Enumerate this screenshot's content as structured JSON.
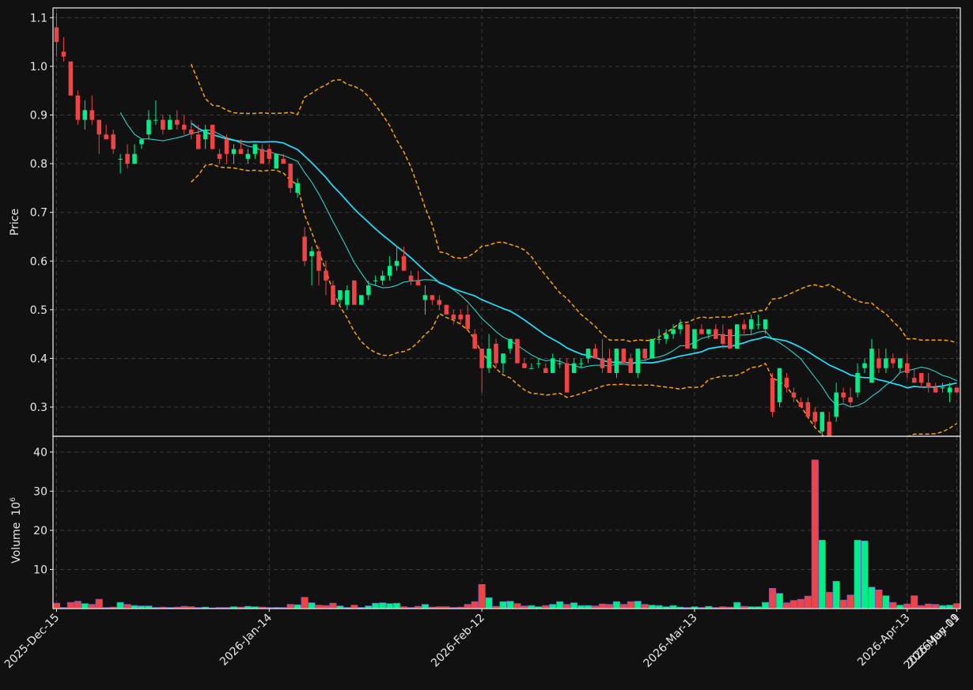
{
  "theme": {
    "background": "#111111",
    "frame": "#f0f0f0",
    "grid": "#3a3a3a",
    "text": "#e8e8e8",
    "up_color": "#00ee88",
    "down_color": "#ee4444",
    "ma_short_color": "#33e0d8",
    "ma_long_color": "#22e0ff",
    "band_color": "#ffa500"
  },
  "price_panel": {
    "ylabel": "Price",
    "yticks": [
      "1.1",
      "1.0",
      "0.9",
      "0.8",
      "0.7",
      "0.6",
      "0.5",
      "0.4",
      "0.3"
    ]
  },
  "volume_panel": {
    "ylabel": "Volume",
    "ylabel_exp": "10",
    "ylabel_sup": "6",
    "yticks": [
      "40",
      "30",
      "20",
      "10"
    ]
  },
  "x_axis": {
    "ticks": [
      "2025-Dec-15",
      "2026-Jan-14",
      "2026-Feb-12",
      "2026-Mar-13",
      "2026-Apr-13",
      "2026-May-11",
      "2026-Jun-09"
    ]
  },
  "chart_data": {
    "type": "candlestick",
    "price_ylim": [
      0.24,
      1.12
    ],
    "volume_ylim": [
      0,
      42
    ],
    "volume_unit": "10^6",
    "grid": true,
    "candles_ohlcv": [
      [
        1.08,
        1.11,
        1.02,
        1.05,
        1.4
      ],
      [
        1.03,
        1.06,
        1.01,
        1.02,
        0.3
      ],
      [
        1.01,
        1.01,
        0.94,
        0.94,
        1.6
      ],
      [
        0.94,
        0.95,
        0.88,
        0.89,
        1.9
      ],
      [
        0.89,
        0.93,
        0.87,
        0.91,
        1.3
      ],
      [
        0.91,
        0.94,
        0.88,
        0.89,
        1.1
      ],
      [
        0.89,
        0.89,
        0.82,
        0.86,
        2.4
      ],
      [
        0.86,
        0.88,
        0.85,
        0.85,
        0.3
      ],
      [
        0.86,
        0.87,
        0.82,
        0.83,
        0.4
      ],
      [
        0.81,
        0.82,
        0.78,
        0.81,
        1.6
      ],
      [
        0.82,
        0.84,
        0.79,
        0.8,
        1.1
      ],
      [
        0.8,
        0.84,
        0.8,
        0.82,
        0.8
      ],
      [
        0.84,
        0.85,
        0.83,
        0.85,
        0.7
      ],
      [
        0.86,
        0.91,
        0.85,
        0.89,
        0.7
      ],
      [
        0.89,
        0.93,
        0.88,
        0.89,
        0.3
      ],
      [
        0.89,
        0.9,
        0.86,
        0.87,
        0.4
      ],
      [
        0.87,
        0.9,
        0.87,
        0.89,
        0.3
      ],
      [
        0.89,
        0.91,
        0.87,
        0.88,
        0.4
      ],
      [
        0.88,
        0.9,
        0.86,
        0.87,
        0.6
      ],
      [
        0.87,
        0.89,
        0.85,
        0.86,
        0.5
      ],
      [
        0.86,
        0.88,
        0.83,
        0.83,
        0.3
      ],
      [
        0.85,
        0.88,
        0.83,
        0.87,
        0.4
      ],
      [
        0.88,
        0.88,
        0.83,
        0.83,
        0.2
      ],
      [
        0.82,
        0.83,
        0.8,
        0.81,
        0.3
      ],
      [
        0.85,
        0.86,
        0.8,
        0.82,
        0.3
      ],
      [
        0.82,
        0.84,
        0.8,
        0.83,
        0.5
      ],
      [
        0.83,
        0.85,
        0.82,
        0.82,
        0.4
      ],
      [
        0.81,
        0.83,
        0.8,
        0.82,
        0.6
      ],
      [
        0.82,
        0.84,
        0.81,
        0.84,
        0.5
      ],
      [
        0.83,
        0.84,
        0.8,
        0.8,
        0.4
      ],
      [
        0.83,
        0.84,
        0.8,
        0.81,
        0.3
      ],
      [
        0.79,
        0.82,
        0.79,
        0.82,
        0.3
      ],
      [
        0.81,
        0.82,
        0.8,
        0.8,
        0.3
      ],
      [
        0.8,
        0.8,
        0.74,
        0.75,
        1.1
      ],
      [
        0.74,
        0.77,
        0.73,
        0.76,
        1.0
      ],
      [
        0.65,
        0.67,
        0.59,
        0.6,
        2.9
      ],
      [
        0.61,
        0.63,
        0.55,
        0.62,
        1.5
      ],
      [
        0.62,
        0.63,
        0.55,
        0.58,
        0.9
      ],
      [
        0.58,
        0.6,
        0.53,
        0.56,
        0.8
      ],
      [
        0.55,
        0.56,
        0.51,
        0.51,
        1.4
      ],
      [
        0.52,
        0.54,
        0.51,
        0.54,
        0.7
      ],
      [
        0.51,
        0.55,
        0.5,
        0.54,
        0.3
      ],
      [
        0.56,
        0.56,
        0.51,
        0.51,
        0.9
      ],
      [
        0.51,
        0.53,
        0.51,
        0.53,
        0.3
      ],
      [
        0.53,
        0.56,
        0.52,
        0.55,
        0.7
      ],
      [
        0.56,
        0.57,
        0.55,
        0.56,
        1.4
      ],
      [
        0.56,
        0.58,
        0.55,
        0.57,
        1.5
      ],
      [
        0.57,
        0.61,
        0.56,
        0.59,
        1.3
      ],
      [
        0.59,
        0.63,
        0.58,
        0.6,
        1.4
      ],
      [
        0.61,
        0.63,
        0.58,
        0.58,
        0.5
      ],
      [
        0.57,
        0.58,
        0.55,
        0.56,
        0.3
      ],
      [
        0.56,
        0.58,
        0.55,
        0.55,
        0.6
      ],
      [
        0.52,
        0.55,
        0.49,
        0.53,
        1.1
      ],
      [
        0.53,
        0.53,
        0.51,
        0.52,
        0.4
      ],
      [
        0.52,
        0.53,
        0.5,
        0.51,
        0.5
      ],
      [
        0.51,
        0.51,
        0.49,
        0.49,
        0.5
      ],
      [
        0.49,
        0.5,
        0.47,
        0.48,
        0.3
      ],
      [
        0.49,
        0.5,
        0.47,
        0.48,
        0.4
      ],
      [
        0.49,
        0.51,
        0.46,
        0.46,
        1.1
      ],
      [
        0.45,
        0.46,
        0.42,
        0.42,
        1.8
      ],
      [
        0.42,
        0.42,
        0.33,
        0.38,
        6.2
      ],
      [
        0.38,
        0.45,
        0.37,
        0.42,
        2.8
      ],
      [
        0.43,
        0.44,
        0.38,
        0.39,
        0.6
      ],
      [
        0.39,
        0.41,
        0.37,
        0.41,
        1.8
      ],
      [
        0.42,
        0.44,
        0.41,
        0.44,
        1.9
      ],
      [
        0.44,
        0.44,
        0.39,
        0.39,
        1.3
      ],
      [
        0.39,
        0.4,
        0.38,
        0.38,
        0.7
      ],
      [
        0.38,
        0.39,
        0.38,
        0.38,
        0.8
      ],
      [
        0.39,
        0.4,
        0.38,
        0.39,
        0.5
      ],
      [
        0.38,
        0.39,
        0.37,
        0.37,
        0.8
      ],
      [
        0.37,
        0.41,
        0.37,
        0.4,
        1.1
      ],
      [
        0.39,
        0.4,
        0.38,
        0.39,
        1.8
      ],
      [
        0.39,
        0.4,
        0.33,
        0.33,
        1.1
      ],
      [
        0.37,
        0.4,
        0.37,
        0.39,
        1.5
      ],
      [
        0.39,
        0.4,
        0.38,
        0.39,
        0.8
      ],
      [
        0.4,
        0.42,
        0.39,
        0.42,
        0.8
      ],
      [
        0.42,
        0.43,
        0.4,
        0.4,
        0.7
      ],
      [
        0.4,
        0.44,
        0.37,
        0.38,
        1.2
      ],
      [
        0.4,
        0.42,
        0.37,
        0.37,
        1.1
      ],
      [
        0.37,
        0.42,
        0.36,
        0.42,
        1.8
      ],
      [
        0.42,
        0.42,
        0.39,
        0.39,
        1.1
      ],
      [
        0.4,
        0.41,
        0.37,
        0.37,
        1.8
      ],
      [
        0.37,
        0.41,
        0.36,
        0.42,
        1.9
      ],
      [
        0.42,
        0.42,
        0.39,
        0.4,
        1.1
      ],
      [
        0.4,
        0.44,
        0.4,
        0.44,
        0.9
      ],
      [
        0.44,
        0.46,
        0.43,
        0.44,
        0.8
      ],
      [
        0.44,
        0.46,
        0.43,
        0.45,
        0.5
      ],
      [
        0.45,
        0.47,
        0.44,
        0.46,
        0.8
      ],
      [
        0.46,
        0.48,
        0.45,
        0.47,
        0.4
      ],
      [
        0.47,
        0.47,
        0.42,
        0.42,
        0.3
      ],
      [
        0.42,
        0.46,
        0.42,
        0.46,
        0.5
      ],
      [
        0.46,
        0.47,
        0.45,
        0.45,
        0.3
      ],
      [
        0.45,
        0.46,
        0.44,
        0.46,
        0.6
      ],
      [
        0.46,
        0.47,
        0.45,
        0.44,
        0.3
      ],
      [
        0.45,
        0.47,
        0.42,
        0.43,
        0.5
      ],
      [
        0.46,
        0.46,
        0.42,
        0.42,
        0.4
      ],
      [
        0.42,
        0.47,
        0.42,
        0.47,
        1.6
      ],
      [
        0.47,
        0.48,
        0.45,
        0.46,
        0.6
      ],
      [
        0.46,
        0.49,
        0.45,
        0.48,
        0.5
      ],
      [
        0.47,
        0.49,
        0.46,
        0.47,
        0.5
      ],
      [
        0.46,
        0.48,
        0.45,
        0.48,
        1.6
      ],
      [
        0.36,
        0.37,
        0.28,
        0.29,
        5.2
      ],
      [
        0.31,
        0.38,
        0.3,
        0.38,
        3.9
      ],
      [
        0.36,
        0.37,
        0.33,
        0.34,
        1.5
      ],
      [
        0.33,
        0.34,
        0.31,
        0.32,
        2.1
      ],
      [
        0.31,
        0.32,
        0.3,
        0.3,
        2.4
      ],
      [
        0.31,
        0.32,
        0.28,
        0.28,
        3.2
      ],
      [
        0.29,
        0.3,
        0.26,
        0.27,
        38.0
      ],
      [
        0.25,
        0.29,
        0.24,
        0.29,
        17.5
      ],
      [
        0.27,
        0.29,
        0.23,
        0.24,
        4.2
      ],
      [
        0.28,
        0.35,
        0.27,
        0.33,
        7.0
      ],
      [
        0.33,
        0.34,
        0.31,
        0.32,
        2.2
      ],
      [
        0.32,
        0.34,
        0.3,
        0.31,
        3.5
      ],
      [
        0.33,
        0.39,
        0.32,
        0.37,
        17.5
      ],
      [
        0.38,
        0.4,
        0.37,
        0.39,
        17.3
      ],
      [
        0.35,
        0.44,
        0.35,
        0.42,
        5.5
      ],
      [
        0.4,
        0.42,
        0.37,
        0.38,
        4.8
      ],
      [
        0.38,
        0.42,
        0.37,
        0.4,
        3.3
      ],
      [
        0.4,
        0.41,
        0.38,
        0.39,
        1.6
      ],
      [
        0.38,
        0.4,
        0.37,
        0.4,
        0.9
      ],
      [
        0.39,
        0.41,
        0.36,
        0.37,
        1.2
      ],
      [
        0.36,
        0.38,
        0.35,
        0.35,
        3.3
      ],
      [
        0.37,
        0.37,
        0.34,
        0.35,
        0.8
      ],
      [
        0.35,
        0.37,
        0.33,
        0.34,
        1.2
      ],
      [
        0.34,
        0.35,
        0.33,
        0.33,
        1.1
      ],
      [
        0.34,
        0.35,
        0.33,
        0.34,
        0.8
      ],
      [
        0.33,
        0.35,
        0.31,
        0.34,
        0.9
      ],
      [
        0.34,
        0.34,
        0.33,
        0.33,
        1.3
      ]
    ]
  }
}
